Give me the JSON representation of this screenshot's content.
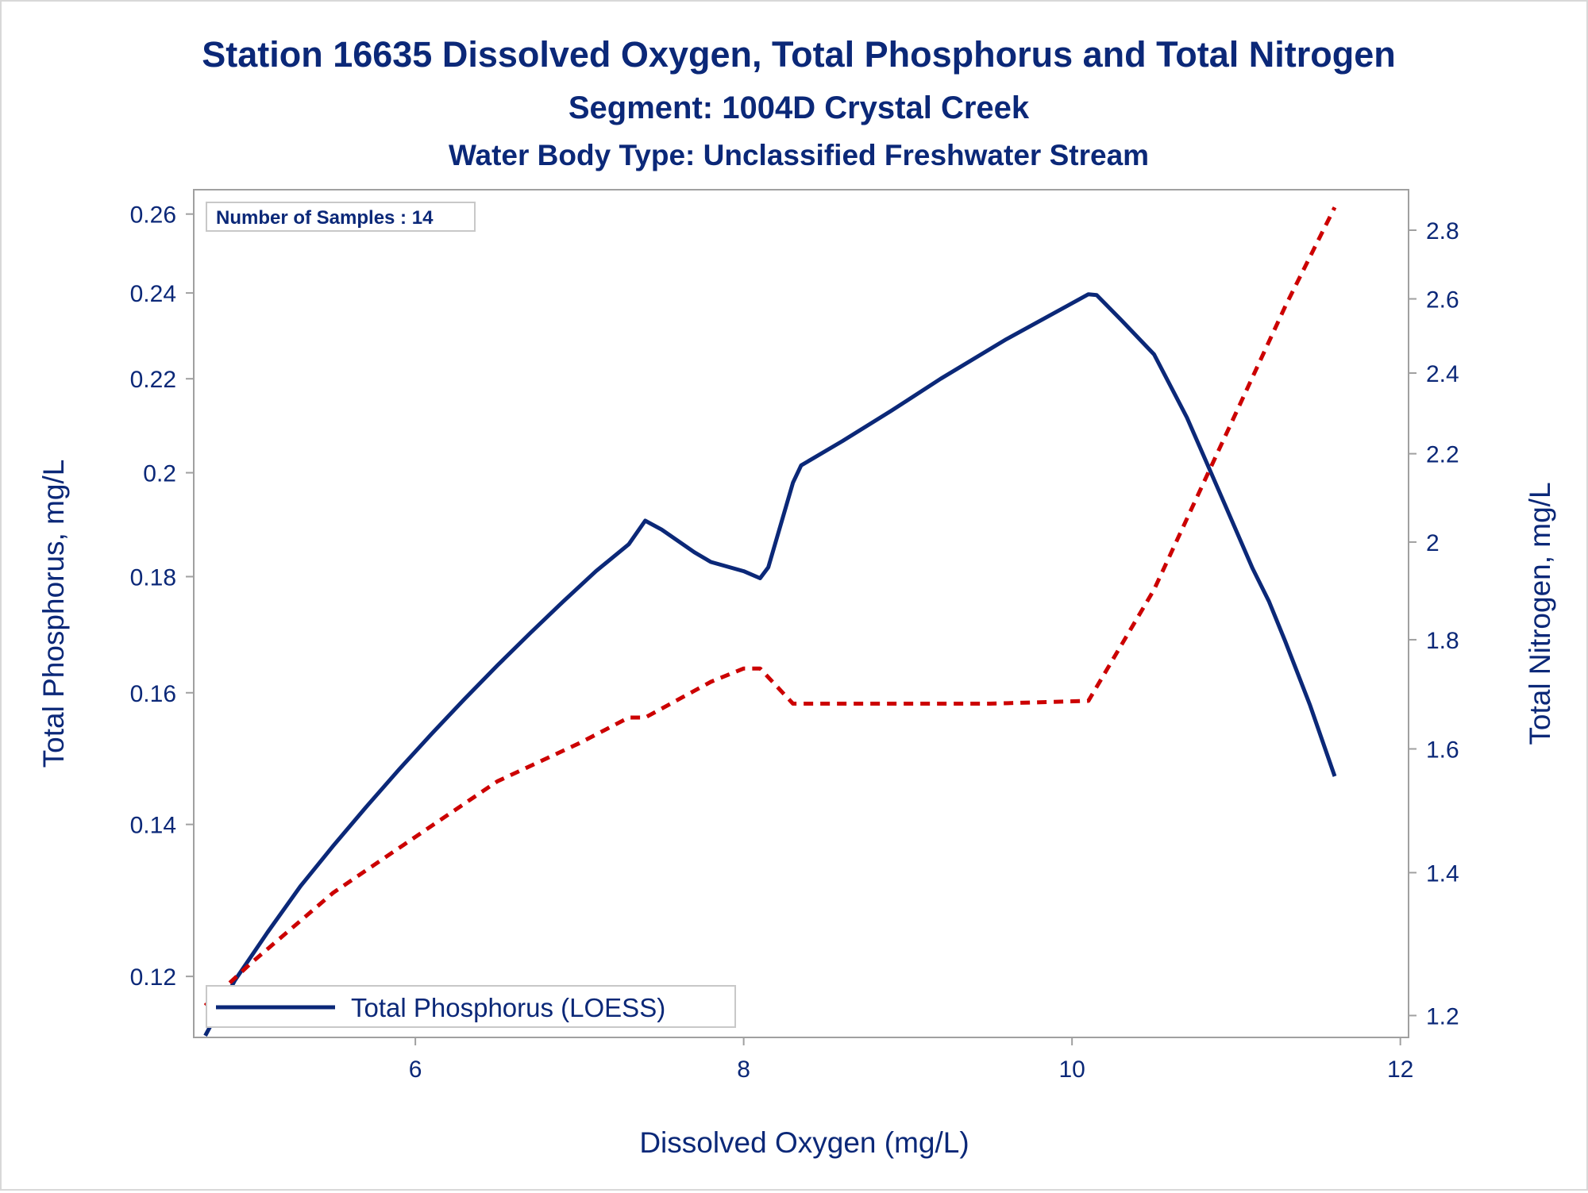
{
  "chart_data": {
    "type": "line",
    "title": "Station 16635  Dissolved Oxygen, Total Phosphorus and Total Nitrogen",
    "subtitle": "Segment: 1004D  Crystal Creek",
    "subtitle2": "Water Body Type: Unclassified Freshwater Stream",
    "annotation": "Number of Samples : 14",
    "xlabel": "Dissolved Oxygen (mg/L)",
    "ylabel": "Total Phosphorus, mg/L",
    "y2label": "Total Nitrogen, mg/L",
    "xlim": [
      4.65,
      12.05
    ],
    "ylim": [
      0.1128,
      0.2665
    ],
    "y2lim": [
      1.172,
      2.925
    ],
    "y_scale": "log",
    "y2_scale": "log",
    "x_ticks": [
      6,
      8,
      10,
      12
    ],
    "y_ticks": [
      0.12,
      0.14,
      0.16,
      0.18,
      0.2,
      0.22,
      0.24,
      0.26
    ],
    "y2_ticks": [
      1.2,
      1.4,
      1.6,
      1.8,
      2,
      2.2,
      2.4,
      2.6,
      2.8
    ],
    "legend": {
      "label": "Total Phosphorus (LOESS)",
      "position": "bottom-left"
    },
    "colors": {
      "text": "#0b2878",
      "phosphorus": "#0b2878",
      "nitrogen": "#cc0000",
      "axis": "#a0a0a0"
    },
    "series": [
      {
        "name": "Total Phosphorus (LOESS)",
        "axis": "y",
        "style": "solid",
        "x": [
          4.72,
          4.9,
          5.1,
          5.3,
          5.5,
          5.7,
          5.9,
          6.1,
          6.3,
          6.5,
          6.7,
          6.9,
          7.1,
          7.3,
          7.4,
          7.5,
          7.7,
          7.8,
          8.0,
          8.1,
          8.15,
          8.3,
          8.35,
          8.6,
          8.9,
          9.2,
          9.6,
          10.0,
          10.1,
          10.15,
          10.3,
          10.5,
          10.7,
          10.9,
          11.1,
          11.2,
          11.3,
          11.45,
          11.6
        ],
        "values": [
          0.113,
          0.1195,
          0.1255,
          0.1315,
          0.137,
          0.1425,
          0.148,
          0.1535,
          0.159,
          0.1645,
          0.17,
          0.1755,
          0.181,
          0.186,
          0.1905,
          0.1888,
          0.1845,
          0.1827,
          0.181,
          0.1797,
          0.1817,
          0.198,
          0.2015,
          0.2065,
          0.213,
          0.22,
          0.229,
          0.2375,
          0.2397,
          0.2395,
          0.2335,
          0.2255,
          0.2115,
          0.196,
          0.1815,
          0.1755,
          0.1685,
          0.158,
          0.147
        ]
      },
      {
        "name": "",
        "axis": "y2",
        "style": "dashed",
        "x": [
          4.72,
          5.0,
          5.5,
          6.0,
          6.5,
          7.0,
          7.3,
          7.4,
          7.8,
          8.0,
          8.1,
          8.3,
          8.6,
          9.5,
          10.1,
          10.5,
          11.0,
          11.3,
          11.6
        ],
        "values": [
          1.213,
          1.27,
          1.37,
          1.455,
          1.545,
          1.61,
          1.655,
          1.655,
          1.72,
          1.745,
          1.745,
          1.68,
          1.68,
          1.68,
          1.685,
          1.9,
          2.3,
          2.58,
          2.87
        ]
      }
    ]
  }
}
